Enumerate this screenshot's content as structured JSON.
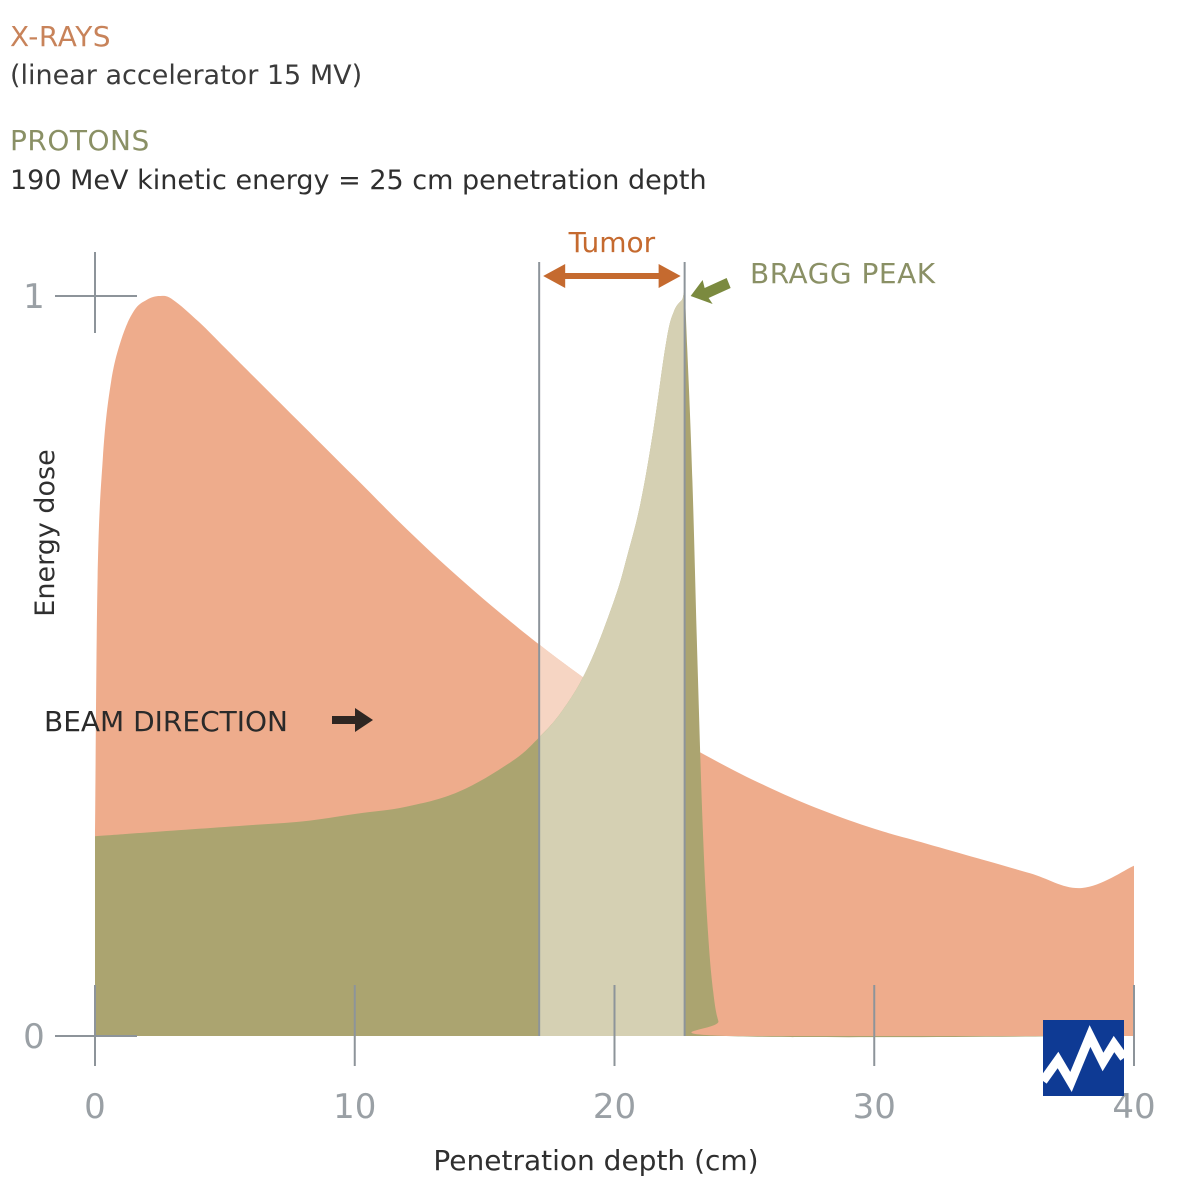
{
  "header": {
    "xrays_title": "X-RAYS",
    "xrays_subtitle": "(linear accelerator 15 MV)",
    "protons_title": "PROTONS",
    "protons_subtitle": "190 MeV kinetic energy = 25 cm penetration depth"
  },
  "annotations": {
    "tumor": "Tumor",
    "bragg_peak": "BRAGG PEAK",
    "beam_direction": "BEAM DIRECTION"
  },
  "colors": {
    "xrays": "#eeac8c",
    "protons": "#aba470",
    "tumor_band": "#f6d5c3",
    "tumor_overlap": "#d5d0b3",
    "grid": "#8d949a",
    "tumor_arrow": "#c56a2f",
    "bragg_arrow": "#7b8a3f",
    "logo": "#0e3a94"
  },
  "chart_data": {
    "type": "area",
    "xlabel": "Penetration depth (cm)",
    "ylabel": "Energy dose",
    "xlim": [
      0,
      40
    ],
    "ylim": [
      0,
      1
    ],
    "xticks": [
      0,
      10,
      20,
      30,
      40
    ],
    "yticks": [
      0,
      1
    ],
    "tumor_range_cm": [
      17.1,
      22.7
    ],
    "bragg_peak": {
      "x": 22.7,
      "y": 1.0
    },
    "series": [
      {
        "name": "X-RAYS",
        "x": [
          0,
          0.1,
          0.3,
          0.6,
          1.0,
          1.5,
          2.0,
          2.5,
          3.0,
          4,
          5,
          6,
          8,
          10,
          12,
          14,
          16,
          18,
          20,
          22,
          24,
          26,
          28,
          30,
          32,
          34,
          36,
          38,
          40
        ],
        "y": [
          0.27,
          0.62,
          0.78,
          0.88,
          0.94,
          0.98,
          0.995,
          1.0,
          0.995,
          0.965,
          0.93,
          0.895,
          0.825,
          0.755,
          0.685,
          0.62,
          0.56,
          0.505,
          0.455,
          0.41,
          0.37,
          0.335,
          0.305,
          0.28,
          0.26,
          0.24,
          0.22,
          0.2,
          0.23
        ]
      },
      {
        "name": "PROTONS",
        "x": [
          0,
          2,
          4,
          6,
          8,
          10,
          12,
          14,
          16,
          17,
          18,
          19,
          20,
          20.5,
          21,
          21.5,
          22,
          22.3,
          22.6,
          22.7,
          22.8,
          23.0,
          23.2,
          23.4,
          23.6,
          23.8,
          24.0,
          24.3,
          40
        ],
        "y": [
          0.27,
          0.275,
          0.28,
          0.285,
          0.29,
          0.3,
          0.31,
          0.33,
          0.37,
          0.4,
          0.44,
          0.5,
          0.59,
          0.65,
          0.72,
          0.82,
          0.94,
          0.98,
          0.995,
          1.0,
          0.93,
          0.75,
          0.5,
          0.28,
          0.14,
          0.06,
          0.02,
          0.0,
          0.0
        ]
      }
    ]
  }
}
